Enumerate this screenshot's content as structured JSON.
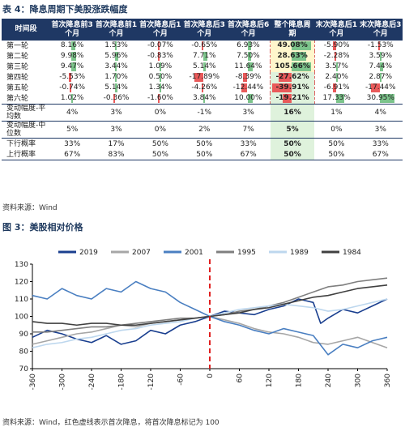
{
  "table_title": "表 4：降息周期下美股涨跌幅度",
  "table": {
    "headers": [
      "时间段",
      "首次降息前3个月",
      "首次降息前1个月",
      "首次降息后1个月",
      "首次降息后3个月",
      "首次降息后6个月",
      "整个降息周期",
      "末次降息后1个月",
      "末次降息后3个月"
    ],
    "rows": [
      {
        "label": "第一轮",
        "cells": [
          "8.16%",
          "1.53%",
          "-0.07%",
          "-0.65%",
          "6.93%",
          "49.08%",
          "-5.90%",
          "-1.53%"
        ]
      },
      {
        "label": "第二轮",
        "cells": [
          "9.98%",
          "5.96%",
          "-0.83%",
          "7.71%",
          "7.50%",
          "28.63%",
          "-2.28%",
          "3.59%"
        ]
      },
      {
        "label": "第三轮",
        "cells": [
          "9.47%",
          "3.44%",
          "1.09%",
          "5.14%",
          "11.64%",
          "105.66%",
          "3.57%",
          "7.44%"
        ]
      },
      {
        "label": "第四轮",
        "cells": [
          "-5.53%",
          "1.70%",
          "0.50%",
          "-17.89%",
          "-8.39%",
          "-27.62%",
          "2.40%",
          "2.87%"
        ]
      },
      {
        "label": "第五轮",
        "cells": [
          "-0.74%",
          "5.14%",
          "1.34%",
          "-4.26%",
          "-12.44%",
          "-39.91%",
          "-6.91%",
          "-17.44%"
        ]
      },
      {
        "label": "第六轮",
        "cells": [
          "1.02%",
          "-0.36%",
          "-1.60%",
          "3.84%",
          "10.00%",
          "-19.21%",
          "17.33%",
          "30.95%"
        ]
      }
    ],
    "bar_values": [
      [
        8.16,
        1.53,
        -0.07,
        -0.65,
        6.93,
        49.08,
        -5.9,
        -1.53
      ],
      [
        9.98,
        5.96,
        -0.83,
        7.71,
        7.5,
        28.63,
        -2.28,
        3.59
      ],
      [
        9.47,
        3.44,
        1.09,
        5.14,
        11.64,
        105.66,
        3.57,
        7.44
      ],
      [
        -5.53,
        1.7,
        0.5,
        -17.89,
        -8.39,
        -27.62,
        2.4,
        2.87
      ],
      [
        -0.74,
        5.14,
        1.34,
        -4.26,
        -12.44,
        -39.91,
        -6.91,
        -17.44
      ],
      [
        1.02,
        -0.36,
        -1.6,
        3.84,
        10.0,
        -19.21,
        17.33,
        30.95
      ]
    ],
    "stats": [
      {
        "label": "变动幅度-平均数",
        "cells": [
          "4%",
          "3%",
          "0%",
          "-1%",
          "3%",
          "16%",
          "1%",
          "4%"
        ]
      },
      {
        "label": "变动幅度-中位数",
        "cells": [
          "5%",
          "3%",
          "0%",
          "2%",
          "7%",
          "5%",
          "0%",
          "3%"
        ]
      },
      {
        "label": "下行概率",
        "cells": [
          "33%",
          "17%",
          "50%",
          "50%",
          "33%",
          "50%",
          "50%",
          "33%"
        ]
      },
      {
        "label": "上行概率",
        "cells": [
          "67%",
          "83%",
          "50%",
          "50%",
          "67%",
          "50%",
          "50%",
          "67%"
        ]
      }
    ]
  },
  "table_source": "资料来源：Wind",
  "chart_title": "图 3：美股相对价格",
  "chart_data": {
    "type": "line",
    "title": "",
    "xlabel": "",
    "ylabel": "",
    "xlim": [
      -360,
      360
    ],
    "ylim": [
      70,
      130
    ],
    "xticks": [
      -360,
      -300,
      -240,
      -180,
      -120,
      -60,
      0,
      60,
      120,
      180,
      240,
      300,
      360
    ],
    "yticks": [
      70,
      80,
      90,
      100,
      110,
      120,
      130
    ],
    "grid": false,
    "legend_position": "top",
    "vline_x": 0,
    "series": [
      {
        "name": "2019",
        "color": "#1a3f8f",
        "x": [
          -360,
          -330,
          -300,
          -270,
          -240,
          -210,
          -180,
          -150,
          -120,
          -90,
          -60,
          -30,
          0,
          30,
          60,
          90,
          120,
          150,
          180,
          210,
          225,
          240,
          270,
          300,
          330,
          360
        ],
        "y": [
          88,
          92,
          90,
          87,
          85,
          89,
          84,
          86,
          92,
          90,
          95,
          97,
          100,
          103,
          102,
          101,
          104,
          106,
          110,
          108,
          96,
          99,
          104,
          102,
          106,
          110
        ]
      },
      {
        "name": "2007",
        "color": "#a6a6a6",
        "x": [
          -360,
          -330,
          -300,
          -270,
          -240,
          -210,
          -180,
          -150,
          -120,
          -90,
          -60,
          -30,
          0,
          30,
          60,
          90,
          120,
          150,
          180,
          210,
          240,
          270,
          300,
          330,
          360
        ],
        "y": [
          84,
          86,
          88,
          90,
          91,
          93,
          95,
          94,
          96,
          97,
          98,
          99,
          100,
          98,
          96,
          93,
          91,
          90,
          88,
          85,
          84,
          86,
          88,
          85,
          82
        ]
      },
      {
        "name": "2001",
        "color": "#4a7fc1",
        "x": [
          -360,
          -330,
          -300,
          -270,
          -240,
          -210,
          -180,
          -150,
          -120,
          -90,
          -60,
          -30,
          0,
          30,
          60,
          90,
          120,
          150,
          180,
          210,
          240,
          270,
          300,
          330,
          360
        ],
        "y": [
          112,
          110,
          116,
          112,
          110,
          116,
          114,
          120,
          116,
          114,
          108,
          104,
          100,
          97,
          95,
          92,
          90,
          93,
          91,
          89,
          78,
          84,
          82,
          86,
          88
        ]
      },
      {
        "name": "1995",
        "color": "#7f7f7f",
        "x": [
          -360,
          -330,
          -300,
          -270,
          -240,
          -210,
          -180,
          -150,
          -120,
          -90,
          -60,
          -30,
          0,
          30,
          60,
          90,
          120,
          150,
          180,
          210,
          240,
          270,
          300,
          330,
          360
        ],
        "y": [
          91,
          91,
          92,
          93,
          94,
          94,
          95,
          96,
          97,
          98,
          99,
          99,
          100,
          101,
          103,
          104,
          106,
          108,
          111,
          114,
          117,
          118,
          120,
          121,
          122
        ]
      },
      {
        "name": "1989",
        "color": "#bdd7ee",
        "x": [
          -360,
          -330,
          -300,
          -270,
          -240,
          -210,
          -180,
          -150,
          -120,
          -90,
          -60,
          -30,
          0,
          30,
          60,
          90,
          120,
          150,
          180,
          210,
          240,
          270,
          300,
          330,
          360
        ],
        "y": [
          82,
          84,
          85,
          87,
          88,
          90,
          92,
          93,
          95,
          96,
          97,
          99,
          100,
          102,
          104,
          105,
          106,
          107,
          106,
          105,
          103,
          104,
          106,
          108,
          110
        ]
      },
      {
        "name": "1984",
        "color": "#404040",
        "x": [
          -360,
          -330,
          -300,
          -270,
          -240,
          -210,
          -180,
          -150,
          -120,
          -90,
          -60,
          -30,
          0,
          30,
          60,
          90,
          120,
          150,
          180,
          210,
          240,
          270,
          300,
          330,
          360
        ],
        "y": [
          97,
          96,
          96,
          95,
          96,
          96,
          95,
          95,
          96,
          97,
          98,
          99,
          100,
          101,
          102,
          104,
          105,
          107,
          109,
          111,
          112,
          114,
          116,
          117,
          118
        ]
      }
    ]
  },
  "chart_source": "资料来源：Wind，红色虚线表示首次降息，将首次降息标记为 100"
}
